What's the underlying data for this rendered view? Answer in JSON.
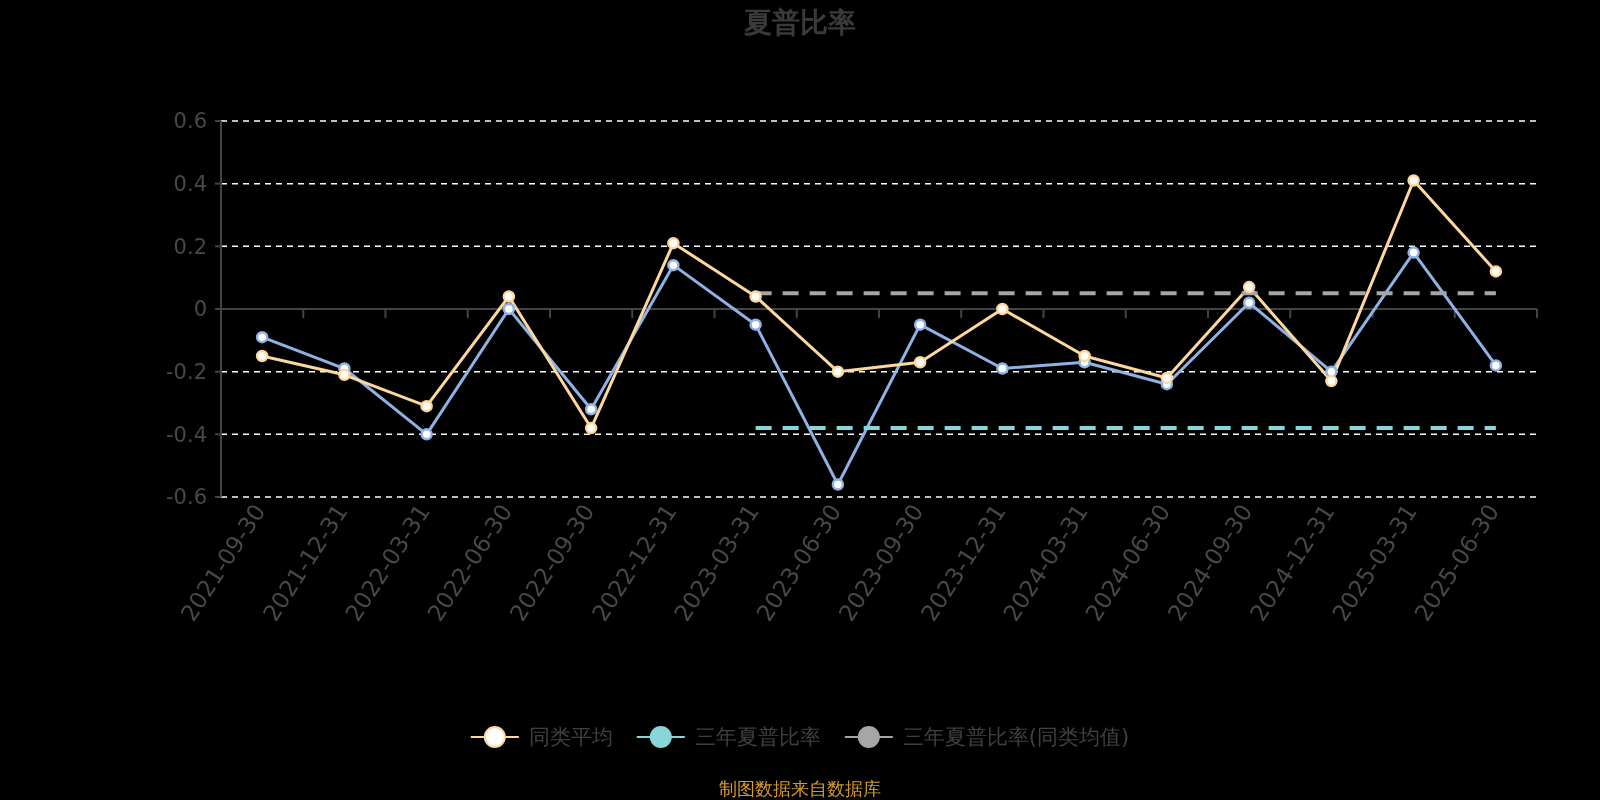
{
  "chart_data": {
    "type": "line",
    "title": "夏普比率",
    "categories": [
      "2021-09-30",
      "2021-12-31",
      "2022-03-31",
      "2022-06-30",
      "2022-09-30",
      "2022-12-31",
      "2023-03-31",
      "2023-06-30",
      "2023-09-30",
      "2023-12-31",
      "2024-03-31",
      "2024-06-30",
      "2024-09-30",
      "2024-12-31",
      "2025-03-31",
      "2025-06-30"
    ],
    "series": [
      {
        "color": "#8fb1e3",
        "marker": "circle",
        "values": [
          -0.09,
          -0.19,
          -0.4,
          0.0,
          -0.32,
          0.14,
          -0.05,
          -0.56,
          -0.05,
          -0.19,
          -0.17,
          -0.24,
          0.02,
          -0.2,
          0.18,
          -0.18
        ]
      },
      {
        "name": "同类平均",
        "color": "#fdd89e",
        "marker": "circle",
        "values": [
          -0.15,
          -0.21,
          -0.31,
          0.04,
          -0.38,
          0.21,
          0.04,
          -0.2,
          -0.17,
          0.0,
          -0.15,
          -0.22,
          0.07,
          -0.23,
          0.41,
          0.12
        ]
      },
      {
        "name": "三年夏普比率",
        "color": "#88d6d9",
        "marker": "none",
        "line_style": "dashed",
        "values": [
          null,
          null,
          null,
          null,
          null,
          null,
          -0.38,
          -0.38,
          -0.38,
          -0.38,
          -0.38,
          -0.38,
          -0.38,
          -0.38,
          -0.38,
          -0.38
        ]
      },
      {
        "name": "三年夏普比率(同类均值)",
        "color": "#a6a6a6",
        "marker": "none",
        "line_style": "dashed",
        "values": [
          null,
          null,
          null,
          null,
          null,
          null,
          0.05,
          0.05,
          0.05,
          0.05,
          0.05,
          0.05,
          0.05,
          0.05,
          0.05,
          0.05
        ]
      }
    ],
    "ylim": [
      -0.6,
      0.6
    ],
    "yticks": [
      -0.6,
      -0.4,
      -0.2,
      0,
      0.2,
      0.4,
      0.6
    ],
    "grid": "y",
    "legend": "bottom",
    "annotations": [
      "制图数据来自数据库"
    ]
  }
}
